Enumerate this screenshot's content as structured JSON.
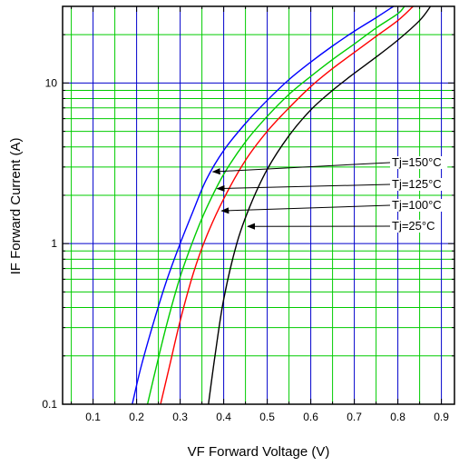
{
  "chart_data": {
    "type": "line",
    "xlabel": "VF  Forward Voltage (V)",
    "ylabel": "IF  Forward Current  (A)",
    "x_axis": {
      "range": [
        0.03,
        0.93
      ],
      "ticks": [
        0.1,
        0.2,
        0.3,
        0.4,
        0.5,
        0.6,
        0.7,
        0.8,
        0.9
      ],
      "tick_labels": [
        "0.1",
        "0.2",
        "0.3",
        "0.4",
        "0.5",
        "0.6",
        "0.7",
        "0.8",
        "0.9"
      ]
    },
    "y_axis": {
      "scale": "log",
      "range": [
        0.1,
        30
      ],
      "ticks": [
        0.1,
        1,
        10
      ],
      "tick_labels": [
        "0.1",
        "1",
        "10"
      ]
    },
    "grid": true,
    "grid_colors": {
      "major": "#0000cc",
      "minor": "#00cc00"
    },
    "series": [
      {
        "name": "Tj=150°C",
        "color": "#0000ff",
        "points": [
          [
            0.19,
            0.1
          ],
          [
            0.21,
            0.17
          ],
          [
            0.24,
            0.33
          ],
          [
            0.27,
            0.6
          ],
          [
            0.3,
            1.0
          ],
          [
            0.33,
            1.6
          ],
          [
            0.36,
            2.5
          ],
          [
            0.4,
            3.8
          ],
          [
            0.45,
            5.6
          ],
          [
            0.5,
            7.8
          ],
          [
            0.55,
            10.5
          ],
          [
            0.6,
            13.5
          ],
          [
            0.65,
            17
          ],
          [
            0.7,
            21
          ],
          [
            0.75,
            25.5
          ],
          [
            0.79,
            30
          ]
        ]
      },
      {
        "name": "Tj=125°C",
        "color": "#00cc00",
        "points": [
          [
            0.225,
            0.1
          ],
          [
            0.245,
            0.17
          ],
          [
            0.27,
            0.32
          ],
          [
            0.3,
            0.62
          ],
          [
            0.33,
            1.05
          ],
          [
            0.36,
            1.65
          ],
          [
            0.4,
            2.7
          ],
          [
            0.45,
            4.3
          ],
          [
            0.5,
            6.2
          ],
          [
            0.55,
            8.5
          ],
          [
            0.6,
            11
          ],
          [
            0.65,
            14
          ],
          [
            0.7,
            17.5
          ],
          [
            0.75,
            22
          ],
          [
            0.8,
            27
          ],
          [
            0.815,
            30
          ]
        ]
      },
      {
        "name": "Tj=100°C",
        "color": "#ff0000",
        "points": [
          [
            0.255,
            0.1
          ],
          [
            0.275,
            0.17
          ],
          [
            0.3,
            0.33
          ],
          [
            0.33,
            0.65
          ],
          [
            0.36,
            1.1
          ],
          [
            0.4,
            1.9
          ],
          [
            0.45,
            3.3
          ],
          [
            0.5,
            5.0
          ],
          [
            0.55,
            7.0
          ],
          [
            0.6,
            9.5
          ],
          [
            0.65,
            12.3
          ],
          [
            0.7,
            15.5
          ],
          [
            0.75,
            19.5
          ],
          [
            0.8,
            24.5
          ],
          [
            0.835,
            30
          ]
        ]
      },
      {
        "name": "Tj=25°C",
        "color": "#000000",
        "points": [
          [
            0.365,
            0.1
          ],
          [
            0.38,
            0.2
          ],
          [
            0.4,
            0.45
          ],
          [
            0.43,
            1.0
          ],
          [
            0.46,
            1.7
          ],
          [
            0.5,
            2.9
          ],
          [
            0.55,
            4.7
          ],
          [
            0.6,
            6.8
          ],
          [
            0.65,
            9.0
          ],
          [
            0.7,
            11.5
          ],
          [
            0.75,
            14.5
          ],
          [
            0.8,
            18.5
          ],
          [
            0.85,
            24.5
          ],
          [
            0.875,
            30
          ]
        ]
      }
    ],
    "annotations": [
      {
        "text": "Tj=150°C",
        "arrow_to": [
          0.375,
          2.8
        ]
      },
      {
        "text": "Tj=125°C",
        "arrow_to": [
          0.385,
          2.2
        ]
      },
      {
        "text": "Tj=100°C",
        "arrow_to": [
          0.395,
          1.6
        ]
      },
      {
        "text": "Tj=25°C",
        "arrow_to": [
          0.455,
          1.28
        ]
      }
    ]
  }
}
